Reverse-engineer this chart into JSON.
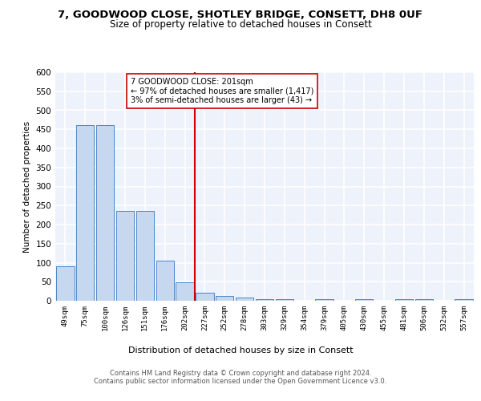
{
  "title1": "7, GOODWOOD CLOSE, SHOTLEY BRIDGE, CONSETT, DH8 0UF",
  "title2": "Size of property relative to detached houses in Consett",
  "xlabel": "Distribution of detached houses by size in Consett",
  "ylabel": "Number of detached properties",
  "categories": [
    "49sqm",
    "75sqm",
    "100sqm",
    "126sqm",
    "151sqm",
    "176sqm",
    "202sqm",
    "227sqm",
    "252sqm",
    "278sqm",
    "303sqm",
    "329sqm",
    "354sqm",
    "379sqm",
    "405sqm",
    "430sqm",
    "455sqm",
    "481sqm",
    "506sqm",
    "532sqm",
    "557sqm"
  ],
  "values": [
    90,
    460,
    460,
    235,
    235,
    105,
    48,
    22,
    13,
    8,
    5,
    5,
    0,
    5,
    0,
    5,
    0,
    5,
    5,
    0,
    5
  ],
  "bar_color": "#c5d8f0",
  "bar_edge_color": "#4a86c8",
  "background_color": "#eef2fb",
  "grid_color": "#ffffff",
  "annotation_text": "7 GOODWOOD CLOSE: 201sqm\n← 97% of detached houses are smaller (1,417)\n3% of semi-detached houses are larger (43) →",
  "vline_position": 6.5,
  "vline_color": "#cc0000",
  "annotation_box_color": "#ffffff",
  "annotation_box_edge_color": "#cc0000",
  "ylim": [
    0,
    600
  ],
  "yticks": [
    0,
    50,
    100,
    150,
    200,
    250,
    300,
    350,
    400,
    450,
    500,
    550,
    600
  ],
  "footer": "Contains HM Land Registry data © Crown copyright and database right 2024.\nContains public sector information licensed under the Open Government Licence v3.0.",
  "title1_fontsize": 9.5,
  "title2_fontsize": 8.5
}
